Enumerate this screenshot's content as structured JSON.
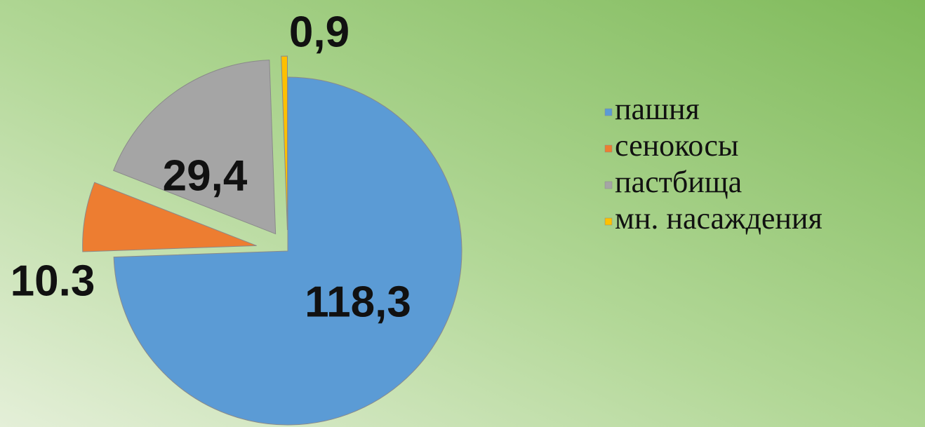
{
  "chart_data": {
    "type": "pie",
    "categories": [
      "пашня",
      "сенокосы",
      "пастбища",
      "мн. насаждения"
    ],
    "values": [
      118.3,
      10.3,
      29.4,
      0.9
    ],
    "value_labels": [
      "118,3",
      "10.3",
      "29,4",
      "0,9"
    ],
    "colors": [
      "#5b9bd5",
      "#ed7d31",
      "#a5a5a5",
      "#ffc000"
    ],
    "legend": "right"
  }
}
